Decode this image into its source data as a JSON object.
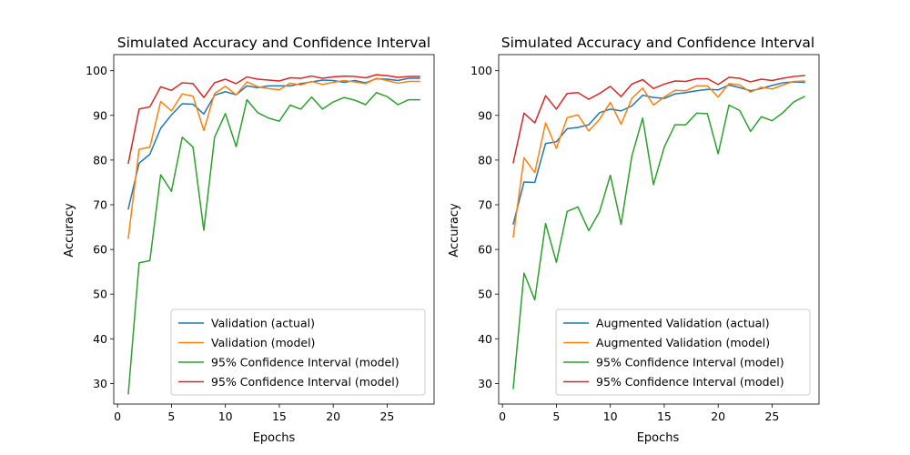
{
  "colors": {
    "blue": "#1f77b4",
    "orange": "#ff7f0e",
    "green": "#2ca02c",
    "red": "#d62728"
  },
  "chart_data": [
    {
      "type": "line",
      "title": "Simulated Accuracy and Confidence Interval",
      "xlabel": "Epochs",
      "ylabel": "Accuracy",
      "xlim": [
        -0.35,
        29.35
      ],
      "ylim": [
        25.4,
        103.6
      ],
      "xticks": [
        0,
        5,
        10,
        15,
        20,
        25
      ],
      "yticks": [
        30,
        40,
        50,
        60,
        70,
        80,
        90,
        100
      ],
      "grid": false,
      "legend_position": "lower-right",
      "x": [
        1,
        2,
        3,
        4,
        5,
        6,
        7,
        8,
        9,
        10,
        11,
        12,
        13,
        14,
        15,
        16,
        17,
        18,
        19,
        20,
        21,
        22,
        23,
        24,
        25,
        26,
        27,
        28
      ],
      "series": [
        {
          "name": "Validation (actual)",
          "color": "blue",
          "values": [
            69.1,
            79.3,
            81.3,
            87.1,
            90.1,
            92.6,
            92.5,
            90.3,
            94.5,
            95.3,
            94.6,
            96.6,
            96.2,
            96.6,
            96.6,
            96.6,
            97.1,
            97.5,
            97.9,
            97.8,
            97.4,
            97.8,
            97.3,
            98.2,
            98.1,
            97.8,
            98.3,
            98.3
          ]
        },
        {
          "name": "Validation (model)",
          "color": "orange",
          "values": [
            62.5,
            82.4,
            82.9,
            93.1,
            91.0,
            94.8,
            94.3,
            86.6,
            94.9,
            96.5,
            94.6,
            97.5,
            96.4,
            96.0,
            95.7,
            97.2,
            96.8,
            97.6,
            96.9,
            97.4,
            97.8,
            97.5,
            97.1,
            98.3,
            97.8,
            97.2,
            97.6,
            97.6
          ]
        },
        {
          "name": "95% Confidence Interval (model)",
          "color": "green",
          "values": [
            27.7,
            57.0,
            57.5,
            76.7,
            73.0,
            85.1,
            82.9,
            64.3,
            85.1,
            90.4,
            83.0,
            93.5,
            90.6,
            89.4,
            88.7,
            92.3,
            91.4,
            94.1,
            91.4,
            93.0,
            94.0,
            93.4,
            92.4,
            95.1,
            94.2,
            92.4,
            93.5,
            93.5
          ]
        },
        {
          "name": "95% Confidence Interval (model)",
          "color": "red",
          "values": [
            79.3,
            91.4,
            91.9,
            96.4,
            95.6,
            97.3,
            97.1,
            94.0,
            97.3,
            98.1,
            97.1,
            98.6,
            98.1,
            97.9,
            97.7,
            98.4,
            98.3,
            98.8,
            98.3,
            98.6,
            98.8,
            98.7,
            98.4,
            99.1,
            98.9,
            98.5,
            98.7,
            98.7
          ]
        }
      ]
    },
    {
      "type": "line",
      "title": "Simulated Accuracy and Confidence Interval",
      "xlabel": "Epochs",
      "ylabel": "Accuracy",
      "xlim": [
        -0.35,
        29.35
      ],
      "ylim": [
        25.4,
        103.6
      ],
      "xticks": [
        0,
        5,
        10,
        15,
        20,
        25
      ],
      "yticks": [
        30,
        40,
        50,
        60,
        70,
        80,
        90,
        100
      ],
      "grid": false,
      "legend_position": "lower-right",
      "x": [
        1,
        2,
        3,
        4,
        5,
        6,
        7,
        8,
        9,
        10,
        11,
        12,
        13,
        14,
        15,
        16,
        17,
        18,
        19,
        20,
        21,
        22,
        23,
        24,
        25,
        26,
        27,
        28
      ],
      "series": [
        {
          "name": "Augmented Validation (actual)",
          "color": "blue",
          "values": [
            65.7,
            75.1,
            75.0,
            83.7,
            84.1,
            87.0,
            87.3,
            87.9,
            90.6,
            91.4,
            91.0,
            92.1,
            94.5,
            94.0,
            93.8,
            94.8,
            95.1,
            95.5,
            95.8,
            95.7,
            96.8,
            96.2,
            95.5,
            96.0,
            96.7,
            97.3,
            97.5,
            97.4
          ]
        },
        {
          "name": "Augmented Validation (model)",
          "color": "orange",
          "values": [
            62.8,
            80.5,
            77.2,
            88.3,
            82.6,
            89.5,
            90.1,
            86.5,
            89.1,
            92.9,
            88.0,
            93.8,
            96.1,
            92.3,
            94.1,
            95.6,
            95.5,
            96.6,
            96.6,
            94.1,
            97.1,
            96.8,
            95.2,
            96.3,
            95.9,
            96.8,
            97.6,
            97.7
          ]
        },
        {
          "name": "95% Confidence Interval (model)",
          "color": "green",
          "values": [
            28.9,
            54.7,
            48.7,
            65.8,
            57.1,
            68.5,
            69.5,
            64.2,
            68.4,
            76.6,
            65.6,
            80.9,
            89.4,
            74.5,
            82.9,
            87.9,
            87.9,
            90.5,
            90.4,
            81.4,
            92.3,
            91.1,
            86.4,
            89.7,
            88.8,
            90.6,
            93.0,
            94.2
          ]
        },
        {
          "name": "95% Confidence Interval (model)",
          "color": "red",
          "values": [
            79.4,
            90.5,
            88.3,
            94.4,
            91.4,
            94.9,
            95.1,
            93.6,
            94.9,
            96.5,
            94.2,
            97.0,
            98.0,
            96.0,
            97.0,
            97.7,
            97.6,
            98.2,
            98.2,
            96.9,
            98.5,
            98.3,
            97.5,
            98.1,
            97.8,
            98.3,
            98.7,
            98.9
          ]
        }
      ]
    }
  ]
}
